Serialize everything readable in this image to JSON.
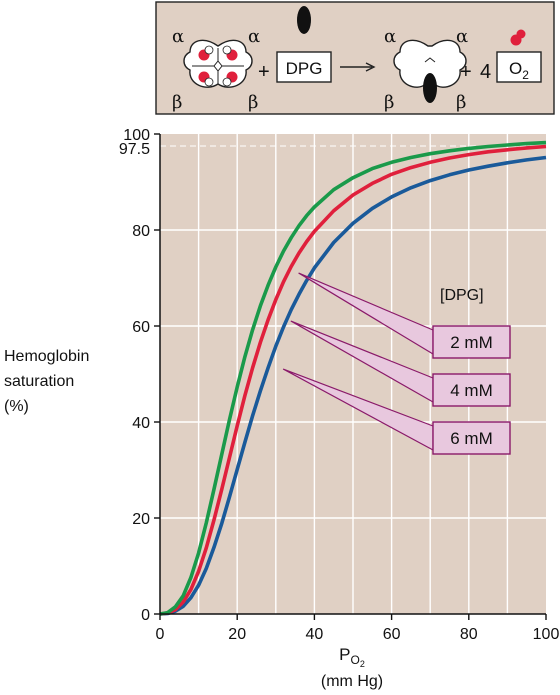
{
  "scheme": {
    "alpha": "α",
    "beta": "β",
    "plus": "+",
    "dpg_box": "DPG",
    "o2_coeff": "4",
    "o2_base": "O",
    "o2_sub": "2"
  },
  "chart_data": {
    "type": "line",
    "ylabel_lines": [
      "Hemoglobin",
      "saturation",
      "(%)"
    ],
    "xlabel_base": "P",
    "xlabel_sub": "O",
    "xlabel_subsub": "2",
    "xunit": "(mm Hg)",
    "xlim": [
      0,
      100
    ],
    "ylim": [
      0,
      100
    ],
    "xticks": [
      0,
      20,
      40,
      60,
      80,
      100
    ],
    "yticks": [
      0,
      20,
      40,
      60,
      80,
      100
    ],
    "reference_line": {
      "y": 97.5,
      "label": "97.5"
    },
    "legend_title": "[DPG]",
    "colors": {
      "background": "#e0d0c4",
      "grid": "#ffffff",
      "scheme_bg": "#e0d0c4",
      "label_box": "#e8c8de",
      "label_border": "#8a1a6a"
    },
    "series": [
      {
        "name": "2 mM",
        "color": "#1a9a4a",
        "x": [
          0,
          2,
          4,
          6,
          8,
          10,
          12,
          14,
          16,
          18,
          20,
          22,
          24,
          26,
          28,
          30,
          32,
          34,
          36,
          38,
          40,
          45,
          50,
          55,
          60,
          65,
          70,
          75,
          80,
          85,
          90,
          95,
          100
        ],
        "y": [
          0,
          0.3,
          1.5,
          3.8,
          7.6,
          12.7,
          19.0,
          26.0,
          33.3,
          40.5,
          47.3,
          53.6,
          59.2,
          64.2,
          68.5,
          72.3,
          75.6,
          78.4,
          80.9,
          83.0,
          84.8,
          88.4,
          90.9,
          92.8,
          94.1,
          95.1,
          95.9,
          96.5,
          97.0,
          97.4,
          97.7,
          98.0,
          98.2
        ]
      },
      {
        "name": "4 mM",
        "color": "#e0203c",
        "x": [
          0,
          2,
          4,
          6,
          8,
          10,
          12,
          14,
          16,
          18,
          20,
          22,
          24,
          26,
          28,
          30,
          32,
          34,
          36,
          38,
          40,
          45,
          50,
          55,
          60,
          65,
          70,
          75,
          80,
          85,
          90,
          95,
          100
        ],
        "y": [
          0,
          0.2,
          0.9,
          2.5,
          5.1,
          8.9,
          13.8,
          19.6,
          26.0,
          32.6,
          39.2,
          45.5,
          51.3,
          56.6,
          61.3,
          65.5,
          69.2,
          72.4,
          75.2,
          77.6,
          79.7,
          84.0,
          87.3,
          89.7,
          91.6,
          93.0,
          94.1,
          95.0,
          95.7,
          96.3,
          96.7,
          97.1,
          97.4
        ]
      },
      {
        "name": "6 mM",
        "color": "#1a5a9a",
        "x": [
          0,
          2,
          4,
          6,
          8,
          10,
          12,
          14,
          16,
          18,
          20,
          22,
          24,
          26,
          28,
          30,
          32,
          34,
          36,
          38,
          40,
          45,
          50,
          55,
          60,
          65,
          70,
          75,
          80,
          85,
          90,
          95,
          100
        ],
        "y": [
          0,
          0.1,
          0.6,
          1.6,
          3.4,
          6.0,
          9.5,
          13.9,
          18.9,
          24.4,
          30.1,
          35.8,
          41.3,
          46.5,
          51.3,
          55.8,
          59.8,
          63.4,
          66.6,
          69.5,
          72.1,
          77.4,
          81.4,
          84.5,
          86.9,
          88.8,
          90.3,
          91.5,
          92.5,
          93.3,
          94.0,
          94.6,
          95.1
        ]
      }
    ]
  }
}
